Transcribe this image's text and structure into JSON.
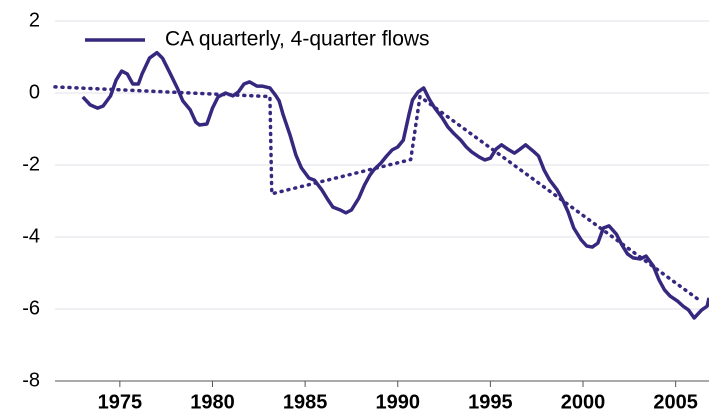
{
  "chart_data": {
    "type": "line",
    "series": [
      {
        "name": "CA quarterly, 4-quarter flows",
        "color": "#37287f",
        "style": "solid",
        "x": [
          1973.0,
          1973.4,
          1973.8,
          1974.1,
          1974.5,
          1974.8,
          1975.1,
          1975.4,
          1975.7,
          1976.0,
          1976.2,
          1976.6,
          1977.0,
          1977.3,
          1977.7,
          1978.1,
          1978.4,
          1978.8,
          1979.1,
          1979.3,
          1979.7,
          1980.0,
          1980.3,
          1980.7,
          1981.1,
          1981.4,
          1981.7,
          1982.0,
          1982.4,
          1982.7,
          1983.1,
          1983.4,
          1983.6,
          1983.8,
          1984.2,
          1984.5,
          1984.8,
          1985.2,
          1985.5,
          1985.9,
          1986.2,
          1986.5,
          1986.9,
          1987.2,
          1987.5,
          1987.9,
          1988.2,
          1988.5,
          1988.7,
          1989.1,
          1989.4,
          1989.7,
          1990.0,
          1990.3,
          1990.6,
          1990.8,
          1991.1,
          1991.4,
          1991.7,
          1992.0,
          1992.4,
          1992.7,
          1993.0,
          1993.4,
          1993.7,
          1994.0,
          1994.4,
          1994.7,
          1995.0,
          1995.3,
          1995.6,
          1996.0,
          1996.3,
          1996.6,
          1996.9,
          1997.3,
          1997.6,
          1997.9,
          1998.2,
          1998.6,
          1998.9,
          1999.2,
          1999.5,
          1999.9,
          2000.2,
          2000.5,
          2000.8,
          2001.1,
          2001.4,
          2001.8,
          2002.1,
          2002.4,
          2002.7,
          2003.1,
          2003.4,
          2003.8,
          2004.1,
          2004.4,
          2004.7,
          2005.1,
          2005.4,
          2005.7,
          2006.0,
          2006.4,
          2006.7,
          2006.8
        ],
        "values": [
          -0.11,
          -0.33,
          -0.42,
          -0.36,
          -0.08,
          0.36,
          0.61,
          0.53,
          0.25,
          0.25,
          0.53,
          0.97,
          1.12,
          0.97,
          0.56,
          0.14,
          -0.22,
          -0.47,
          -0.81,
          -0.89,
          -0.86,
          -0.42,
          -0.11,
          0.0,
          -0.08,
          0.03,
          0.25,
          0.31,
          0.19,
          0.19,
          0.14,
          -0.06,
          -0.22,
          -0.58,
          -1.19,
          -1.72,
          -2.08,
          -2.36,
          -2.42,
          -2.69,
          -2.94,
          -3.17,
          -3.25,
          -3.33,
          -3.25,
          -2.92,
          -2.56,
          -2.28,
          -2.14,
          -1.94,
          -1.75,
          -1.58,
          -1.5,
          -1.31,
          -0.61,
          -0.19,
          0.03,
          0.14,
          -0.17,
          -0.42,
          -0.69,
          -0.94,
          -1.11,
          -1.31,
          -1.5,
          -1.64,
          -1.78,
          -1.86,
          -1.81,
          -1.56,
          -1.44,
          -1.58,
          -1.67,
          -1.56,
          -1.44,
          -1.61,
          -1.75,
          -2.14,
          -2.42,
          -2.69,
          -2.97,
          -3.31,
          -3.75,
          -4.08,
          -4.25,
          -4.28,
          -4.17,
          -3.75,
          -3.69,
          -3.92,
          -4.22,
          -4.47,
          -4.58,
          -4.61,
          -4.53,
          -4.81,
          -5.19,
          -5.47,
          -5.64,
          -5.78,
          -5.92,
          -6.03,
          -6.25,
          -6.03,
          -5.92,
          -5.69
        ]
      },
      {
        "color": "#37287f",
        "style": "dotted",
        "x": [
          1971.5,
          1983.1,
          1983.2,
          1990.7,
          1991.2,
          2006.4
        ],
        "values": [
          0.17,
          -0.1,
          -2.8,
          -1.85,
          -0.1,
          -5.8
        ]
      }
    ],
    "xlim": [
      1971.5,
      2006.8
    ],
    "xticks": [
      1975,
      1980,
      1985,
      1990,
      1995,
      2000,
      2005
    ],
    "ylim": [
      -8,
      2
    ],
    "yticks": [
      2,
      0,
      -2,
      -4,
      -6,
      -8
    ],
    "grid": true
  }
}
